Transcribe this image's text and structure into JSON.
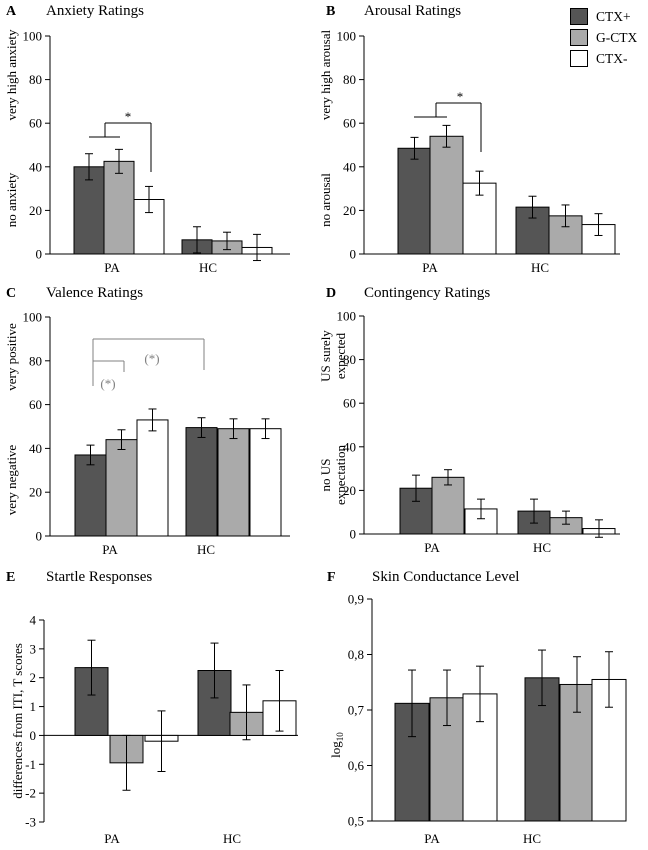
{
  "legend": [
    {
      "label": "CTX+",
      "color": "#555555"
    },
    {
      "label": "G-CTX",
      "color": "#aaaaaa"
    },
    {
      "label": "CTX-",
      "color": "#ffffff"
    }
  ],
  "chart_data": [
    {
      "id": "A",
      "panel_label": "A",
      "type": "bar",
      "title": "Anxiety Ratings",
      "categories": [
        "PA",
        "HC"
      ],
      "series": [
        {
          "name": "CTX+",
          "values": [
            40,
            6.5
          ],
          "errors": [
            6,
            6
          ]
        },
        {
          "name": "G-CTX",
          "values": [
            42.5,
            6
          ],
          "errors": [
            5.5,
            4
          ]
        },
        {
          "name": "CTX-",
          "values": [
            25,
            3
          ],
          "errors": [
            6,
            6
          ]
        }
      ],
      "ylim": [
        0,
        100
      ],
      "yticks": [
        0,
        20,
        40,
        60,
        80,
        100
      ],
      "ytick_labels": [
        "0",
        "20",
        "40",
        "60",
        "80",
        "100"
      ],
      "ylabels_upper": [
        "very high anxiety"
      ],
      "ylabels_lower": [
        "no anxiety"
      ],
      "annotations": [
        {
          "text": "*",
          "color": "#000000"
        }
      ]
    },
    {
      "id": "B",
      "panel_label": "B",
      "type": "bar",
      "title": "Arousal Ratings",
      "categories": [
        "PA",
        "HC"
      ],
      "series": [
        {
          "name": "CTX+",
          "values": [
            48.5,
            21.5
          ],
          "errors": [
            5,
            5
          ]
        },
        {
          "name": "G-CTX",
          "values": [
            54,
            17.5
          ],
          "errors": [
            5,
            5
          ]
        },
        {
          "name": "CTX-",
          "values": [
            32.5,
            13.5
          ],
          "errors": [
            5.5,
            5
          ]
        }
      ],
      "ylim": [
        0,
        100
      ],
      "yticks": [
        0,
        20,
        40,
        60,
        80,
        100
      ],
      "ytick_labels": [
        "0",
        "20",
        "40",
        "60",
        "80",
        "100"
      ],
      "ylabels_upper": [
        "very high arousal"
      ],
      "ylabels_lower": [
        "no arousal"
      ],
      "annotations": [
        {
          "text": "*",
          "color": "#000000"
        }
      ]
    },
    {
      "id": "C",
      "panel_label": "C",
      "type": "bar",
      "title": "Valence Ratings",
      "categories": [
        "PA",
        "HC"
      ],
      "series": [
        {
          "name": "CTX+",
          "values": [
            37,
            49.5
          ],
          "errors": [
            4.5,
            4.5
          ]
        },
        {
          "name": "G-CTX",
          "values": [
            44,
            49
          ],
          "errors": [
            4.5,
            4.5
          ]
        },
        {
          "name": "CTX-",
          "values": [
            53,
            49
          ],
          "errors": [
            5,
            4.5
          ]
        }
      ],
      "ylim": [
        0,
        100
      ],
      "yticks": [
        0,
        20,
        40,
        60,
        80,
        100
      ],
      "ytick_labels": [
        "0",
        "20",
        "40",
        "60",
        "80",
        "100"
      ],
      "ylabels_upper": [
        "very positive"
      ],
      "ylabels_lower": [
        "very negative"
      ],
      "annotations": [
        {
          "text": "(*)",
          "color": "#808080"
        },
        {
          "text": "(*)",
          "color": "#808080"
        }
      ]
    },
    {
      "id": "D",
      "panel_label": "D",
      "type": "bar",
      "title": "Contingency Ratings",
      "categories": [
        "PA",
        "HC"
      ],
      "series": [
        {
          "name": "CTX+",
          "values": [
            21,
            10.5
          ],
          "errors": [
            6,
            5.5
          ]
        },
        {
          "name": "G-CTX",
          "values": [
            26,
            7.5
          ],
          "errors": [
            3.5,
            3
          ]
        },
        {
          "name": "CTX-",
          "values": [
            11.5,
            2.5
          ],
          "errors": [
            4.5,
            4
          ]
        }
      ],
      "ylim": [
        0,
        100
      ],
      "yticks": [
        0,
        20,
        40,
        60,
        80,
        100
      ],
      "ytick_labels": [
        "0",
        "20",
        "40",
        "60",
        "80",
        "100"
      ],
      "ylabels_upper": [
        "US surely",
        "expected"
      ],
      "ylabels_lower": [
        "no US",
        "expectation"
      ],
      "annotations": []
    },
    {
      "id": "E",
      "panel_label": "E",
      "type": "bar",
      "title": "Startle Responses",
      "categories": [
        "PA",
        "HC"
      ],
      "series": [
        {
          "name": "CTX+",
          "values": [
            2.35,
            2.25
          ],
          "errors": [
            0.95,
            0.95
          ]
        },
        {
          "name": "G-CTX",
          "values": [
            -0.95,
            0.8
          ],
          "errors": [
            0.95,
            0.95
          ]
        },
        {
          "name": "CTX-",
          "values": [
            -0.2,
            1.2
          ],
          "errors": [
            1.05,
            1.05
          ]
        }
      ],
      "ylim": [
        -3,
        4
      ],
      "yticks": [
        -3,
        -2,
        -1,
        0,
        1,
        2,
        3,
        4
      ],
      "ytick_labels": [
        "-3",
        "-2",
        "-1",
        "0",
        "1",
        "2",
        "3",
        "4"
      ],
      "ylabels_upper": [],
      "ylabels_lower": [],
      "ylabel": "differences from ITI, T scores",
      "annotations": []
    },
    {
      "id": "F",
      "panel_label": "F",
      "type": "bar",
      "title": "Skin Conductance Level",
      "categories": [
        "PA",
        "HC"
      ],
      "series": [
        {
          "name": "CTX+",
          "values": [
            0.712,
            0.758
          ],
          "errors": [
            0.06,
            0.05
          ]
        },
        {
          "name": "G-CTX",
          "values": [
            0.722,
            0.746
          ],
          "errors": [
            0.05,
            0.05
          ]
        },
        {
          "name": "CTX-",
          "values": [
            0.729,
            0.755
          ],
          "errors": [
            0.05,
            0.05
          ]
        }
      ],
      "ylim": [
        0.5,
        0.9
      ],
      "yticks": [
        0.5,
        0.6,
        0.7,
        0.8,
        0.9
      ],
      "ytick_labels": [
        "0,5",
        "0,6",
        "0,7",
        "0,8",
        "0,9"
      ],
      "ylabels_upper": [],
      "ylabels_lower": [],
      "ylabel": "log",
      "ylabel_subscript": "10",
      "annotations": []
    }
  ]
}
